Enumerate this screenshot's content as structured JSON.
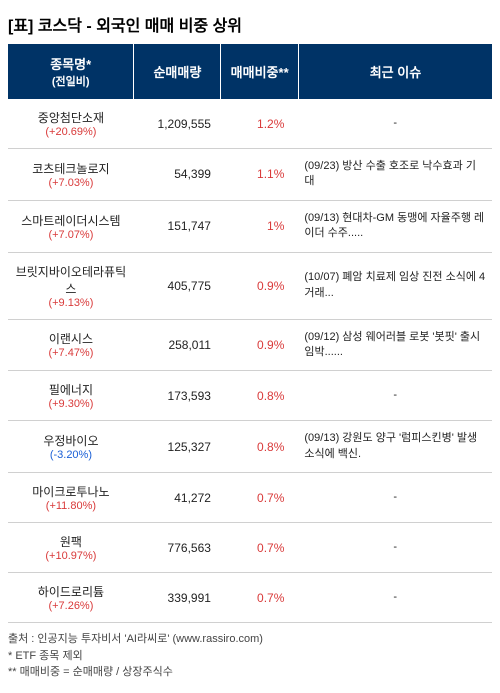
{
  "title": "[표] 코스닥 - 외국인 매매 비중 상위",
  "headers": {
    "name_line1": "종목명*",
    "name_line2": "(전일비)",
    "volume": "순매매량",
    "ratio": "매매비중**",
    "issue": "최근 이슈"
  },
  "colors": {
    "header_bg": "#003366",
    "header_fg": "#ffffff",
    "up": "#d93a3a",
    "down": "#1a5fd6",
    "ratio": "#d93a3a",
    "border": "#d0d0d0",
    "text": "#222222"
  },
  "rows": [
    {
      "name": "중앙첨단소재",
      "change": "(+20.69%)",
      "dir": "up",
      "volume": "1,209,555",
      "ratio": "1.2%",
      "issue": "-"
    },
    {
      "name": "코츠테크놀로지",
      "change": "(+7.03%)",
      "dir": "up",
      "volume": "54,399",
      "ratio": "1.1%",
      "issue": "(09/23) 방산 수출 호조로 낙수효과 기대"
    },
    {
      "name": "스마트레이더시스템",
      "change": "(+7.07%)",
      "dir": "up",
      "volume": "151,747",
      "ratio": "1%",
      "issue": "(09/13) 현대차-GM 동맹에 자율주행 레이더 수주....."
    },
    {
      "name": "브릿지바이오테라퓨틱스",
      "change": "(+9.13%)",
      "dir": "up",
      "volume": "405,775",
      "ratio": "0.9%",
      "issue": "(10/07) 폐암 치료제 임상 진전 소식에 4거래..."
    },
    {
      "name": "이랜시스",
      "change": "(+7.47%)",
      "dir": "up",
      "volume": "258,011",
      "ratio": "0.9%",
      "issue": "(09/12) 삼성 웨어러블 로봇 '봇핏' 출시 임박......"
    },
    {
      "name": "필에너지",
      "change": "(+9.30%)",
      "dir": "up",
      "volume": "173,593",
      "ratio": "0.8%",
      "issue": "-"
    },
    {
      "name": "우정바이오",
      "change": "(-3.20%)",
      "dir": "down",
      "volume": "125,327",
      "ratio": "0.8%",
      "issue": "(09/13) 강원도 양구 '럼피스킨병' 발생 소식에 백신."
    },
    {
      "name": "마이크로투나노",
      "change": "(+11.80%)",
      "dir": "up",
      "volume": "41,272",
      "ratio": "0.7%",
      "issue": "-"
    },
    {
      "name": "원팩",
      "change": "(+10.97%)",
      "dir": "up",
      "volume": "776,563",
      "ratio": "0.7%",
      "issue": "-"
    },
    {
      "name": "하이드로리튬",
      "change": "(+7.26%)",
      "dir": "up",
      "volume": "339,991",
      "ratio": "0.7%",
      "issue": "-"
    }
  ],
  "footer": {
    "source": "출처 : 인공지능 투자비서 'AI라씨로' (www.rassiro.com)",
    "note1": "* ETF 종목 제외",
    "note2": "** 매매비중 = 순매매량 / 상장주식수"
  }
}
